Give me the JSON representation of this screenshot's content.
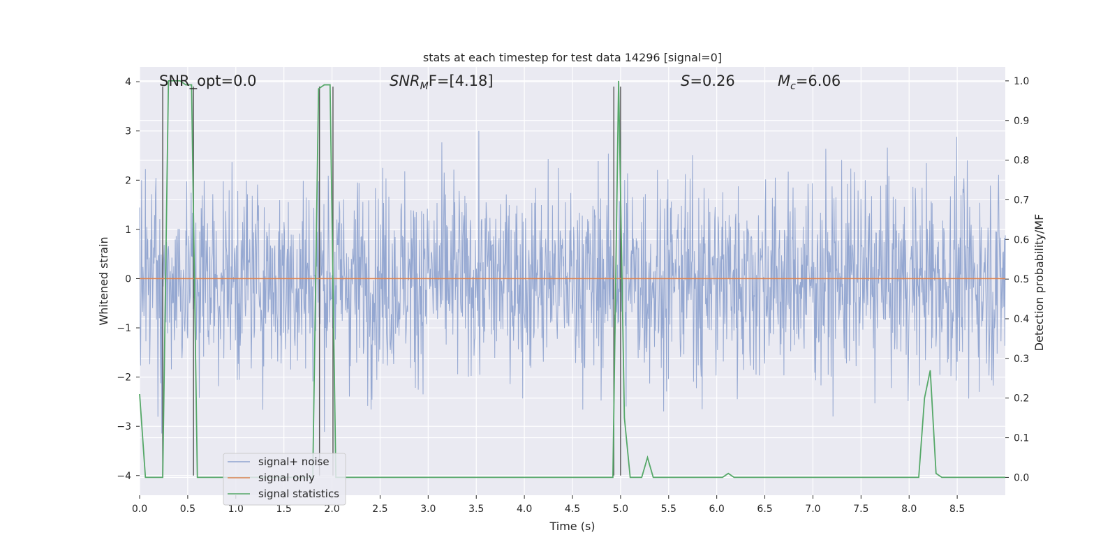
{
  "chart_data": {
    "type": "line",
    "title": "stats at each timestep for test data 14296 [signal=0]",
    "xlabel": "Time (s)",
    "ylabel": "Whitened strain",
    "y2label": "Detection probability/MF",
    "xlim": [
      0.0,
      9.0
    ],
    "ylim": [
      -4.4,
      4.3
    ],
    "y2lim": [
      -0.045,
      1.035
    ],
    "x_ticks": [
      "0.0",
      "0.5",
      "1.0",
      "1.5",
      "2.0",
      "2.5",
      "3.0",
      "3.5",
      "4.0",
      "4.5",
      "5.0",
      "5.5",
      "6.0",
      "6.5",
      "7.0",
      "7.5",
      "8.0",
      "8.5"
    ],
    "y_ticks": [
      "−4",
      "−3",
      "−2",
      "−1",
      "0",
      "1",
      "2",
      "3",
      "4"
    ],
    "y2_ticks": [
      "0.0",
      "0.1",
      "0.2",
      "0.3",
      "0.4",
      "0.5",
      "0.6",
      "0.7",
      "0.8",
      "0.9",
      "1.0"
    ],
    "grid": true,
    "legend_position": "lower-left",
    "annotations": {
      "snr_opt": "SNR_opt=0.0",
      "snr_mf_main": "SNR",
      "snr_mf_sub": "M",
      "snr_mf_rest": "F=[4.18]",
      "s_label_main": "S",
      "s_label_rest": "=0.26",
      "mc_label_main": "M",
      "mc_label_sub": "c",
      "mc_label_rest": "=6.06"
    },
    "series": [
      {
        "name": "signal+ noise",
        "color": "#8fa3cf",
        "description_axis": "left",
        "noise_std": 1.0,
        "typical_range": [
          -2.0,
          2.0
        ],
        "extremes_approx": [
          -3.9,
          3.9
        ]
      },
      {
        "name": "signal only",
        "color": "#dd8452",
        "axis": "left",
        "x": [
          0.0,
          9.0
        ],
        "y": [
          0.0,
          0.0
        ]
      },
      {
        "name": "signal statistics",
        "color": "#55a868",
        "axis": "right",
        "x": [
          0.0,
          0.06,
          0.12,
          0.18,
          0.24,
          0.3,
          0.36,
          0.42,
          0.48,
          0.54,
          0.6,
          0.66,
          0.72,
          0.78,
          1.8,
          1.86,
          1.92,
          1.98,
          2.04,
          2.1,
          2.16,
          2.7,
          4.86,
          4.92,
          4.98,
          5.04,
          5.1,
          5.16,
          5.22,
          5.28,
          5.34,
          5.4,
          5.46,
          6.0,
          6.06,
          6.12,
          6.18,
          6.24,
          8.04,
          8.1,
          8.16,
          8.22,
          8.28,
          8.34,
          8.4,
          9.0
        ],
        "y": [
          0.21,
          0.0,
          0.0,
          0.0,
          0.0,
          1.0,
          1.0,
          1.0,
          0.99,
          0.99,
          0.0,
          0.0,
          0.0,
          0.0,
          0.0,
          0.98,
          0.99,
          0.99,
          0.0,
          0.0,
          0.0,
          0.0,
          0.0,
          0.0,
          1.0,
          0.15,
          0.0,
          0.0,
          0.0,
          0.05,
          0.0,
          0.0,
          0.0,
          0.0,
          0.0,
          0.01,
          0.0,
          0.0,
          0.0,
          0.0,
          0.2,
          0.27,
          0.01,
          0.0,
          0.0,
          0.0
        ]
      }
    ],
    "vertical_markers": [
      {
        "x": 0.24,
        "ymin": -4.0,
        "ymax": 3.9
      },
      {
        "x": 0.56,
        "ymin": -4.0,
        "ymax": 3.9
      },
      {
        "x": 1.87,
        "ymin": -4.0,
        "ymax": 3.9
      },
      {
        "x": 2.01,
        "ymin": -4.0,
        "ymax": 3.9
      },
      {
        "x": 4.93,
        "ymin": -4.0,
        "ymax": 3.9
      },
      {
        "x": 5.0,
        "ymin": -4.0,
        "ymax": 3.9
      }
    ]
  }
}
